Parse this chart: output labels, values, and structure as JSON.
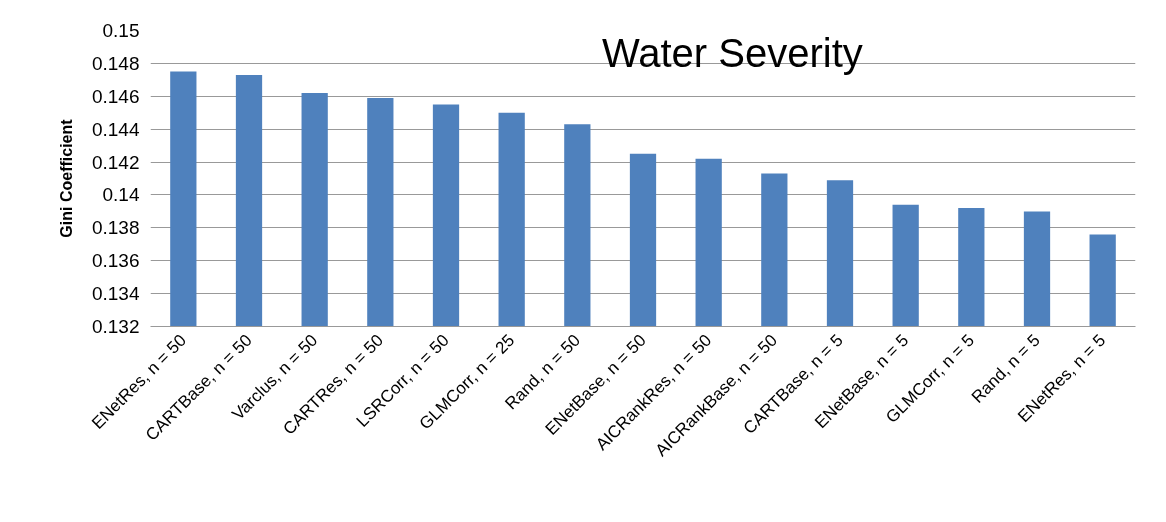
{
  "chart_data": {
    "type": "bar",
    "title": "Water Severity",
    "ylabel": "Gini Coefficient",
    "categories": [
      "ENetRes, n = 50",
      "CARTBase, n = 50",
      "Varclus, n = 50",
      "CARTRes, n = 50",
      "LSRCorr, n = 50",
      "GLMCorr, n = 25",
      "Rand, n = 50",
      "ENetBase, n = 50",
      "AICRankRes, n = 50",
      "AICRankBase, n = 50",
      "CARTBase, n = 5",
      "ENetBase, n = 5",
      "GLMCorr, n = 5",
      "Rand, n = 5",
      "ENetRes, n = 5"
    ],
    "values": [
      0.1475,
      0.1473,
      0.1462,
      0.1459,
      0.1455,
      0.145,
      0.1443,
      0.1425,
      0.1422,
      0.1413,
      0.1409,
      0.1394,
      0.1392,
      0.139,
      0.1376
    ],
    "color": "#4f81bd",
    "ylim": [
      0.132,
      0.15
    ],
    "yticks": [
      0.132,
      0.134,
      0.136,
      0.138,
      0.14,
      0.142,
      0.144,
      0.146,
      0.148,
      0.15
    ],
    "grid": "y"
  }
}
